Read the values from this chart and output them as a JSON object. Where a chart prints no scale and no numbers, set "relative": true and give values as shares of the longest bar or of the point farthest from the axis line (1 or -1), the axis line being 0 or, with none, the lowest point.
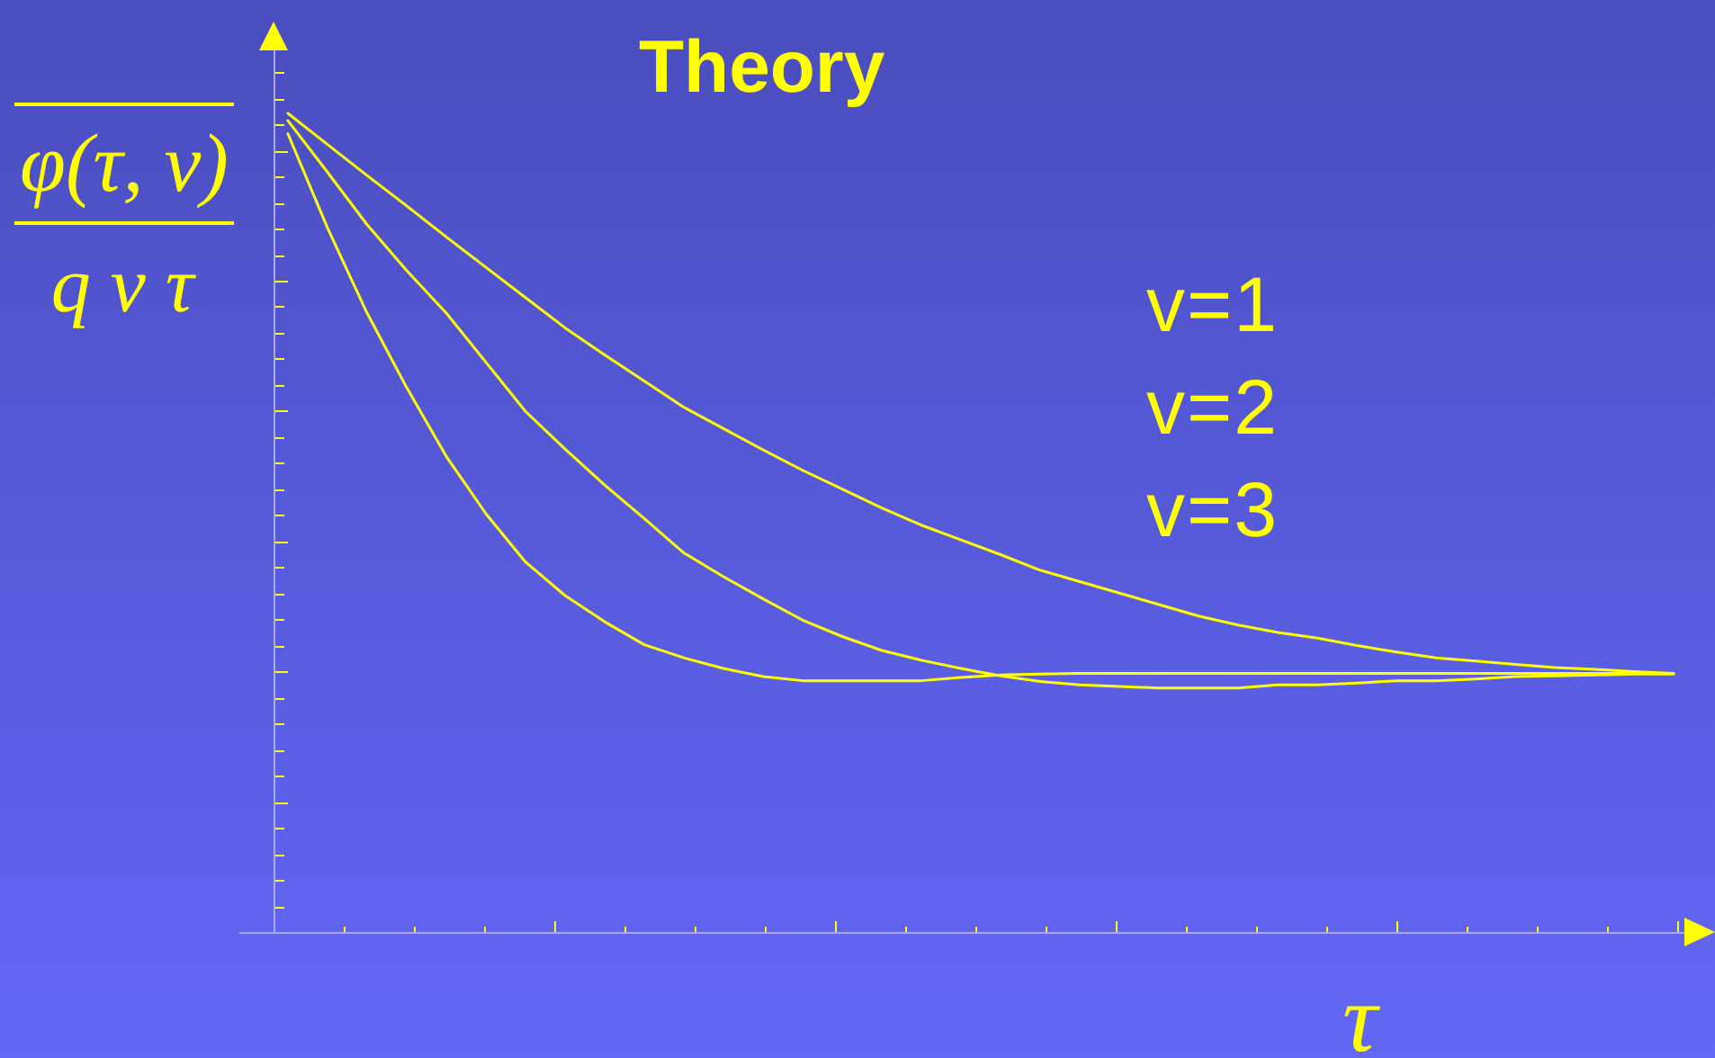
{
  "chart_data": {
    "type": "line",
    "title": "Theory",
    "xlabel": "τ",
    "ylabel": "φ(τ, v)\nq v τ",
    "relative": true,
    "marker": "none",
    "annotations": [
      "v=1",
      "v=2",
      "v=3"
    ],
    "categories": [
      null,
      null,
      null,
      null,
      null,
      null,
      null,
      null,
      null,
      null,
      null,
      null,
      null,
      null,
      null,
      null,
      null,
      null,
      null,
      null,
      null,
      null,
      null,
      null,
      null,
      null,
      null,
      null,
      null,
      null,
      null,
      null,
      null,
      null,
      null,
      null
    ],
    "series": [
      {
        "color": "#ffff00",
        "values": [
          1.0,
          0.962,
          0.924,
          0.887,
          0.849,
          0.812,
          0.775,
          0.738,
          0.705,
          0.673,
          0.641,
          0.615,
          0.589,
          0.564,
          0.541,
          0.518,
          0.497,
          0.479,
          0.461,
          0.442,
          0.428,
          0.414,
          0.4,
          0.386,
          0.375,
          0.366,
          0.359,
          0.35,
          0.342,
          0.335,
          0.331,
          0.327,
          0.323,
          0.321,
          0.318,
          0.316
        ]
      },
      {
        "color": "#ffff00",
        "values": [
          0.991,
          0.928,
          0.864,
          0.808,
          0.756,
          0.696,
          0.636,
          0.59,
          0.546,
          0.505,
          0.463,
          0.434,
          0.407,
          0.381,
          0.361,
          0.344,
          0.332,
          0.322,
          0.313,
          0.306,
          0.302,
          0.3,
          0.298,
          0.298,
          0.298,
          0.302,
          0.302,
          0.304,
          0.307,
          0.307,
          0.309,
          0.312,
          0.313,
          0.314,
          0.315,
          0.315
        ]
      },
      {
        "color": "#ffff00",
        "values": [
          0.975,
          0.86,
          0.756,
          0.665,
          0.581,
          0.511,
          0.452,
          0.411,
          0.379,
          0.351,
          0.335,
          0.322,
          0.312,
          0.307,
          0.307,
          0.307,
          0.307,
          0.311,
          0.314,
          0.315,
          0.316,
          0.316,
          0.316,
          0.316,
          0.316,
          0.316,
          0.316,
          0.316,
          0.316,
          0.316,
          0.316,
          0.316,
          0.316,
          0.316,
          0.316,
          0.316
        ]
      }
    ]
  }
}
